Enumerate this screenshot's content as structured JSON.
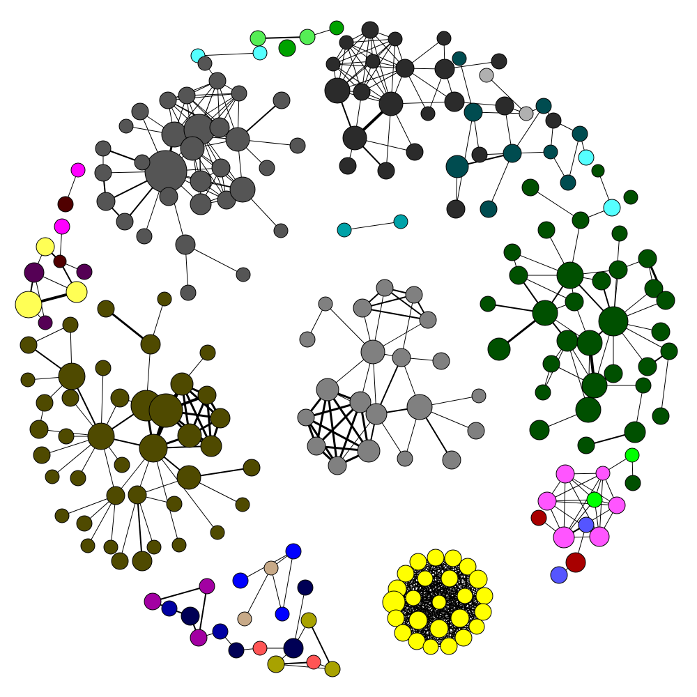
{
  "graph": {
    "palette": {
      "darkgray": "#2b2b2b",
      "gray": "#555555",
      "lightgray": "#808080",
      "silver": "#b0b0b0",
      "teal": "#004c50",
      "cyan": "#55ffff",
      "aqua": "#00a2a8",
      "green": "#005000",
      "brightgreen": "#00ff00",
      "lime": "#55ee55",
      "midgreen": "#00a200",
      "olive": "#4f4a00",
      "olivebright": "#a8a200",
      "yellow": "#ffff00",
      "paleyellow": "#ffff55",
      "pink": "#ff55ff",
      "magenta": "#ff00ff",
      "violet": "#a200a2",
      "plum": "#550055",
      "maroon": "#500000",
      "red": "#a80000",
      "salmon": "#ff5555",
      "blue": "#0000ff",
      "periwinkle": "#5555ff",
      "navy": "#000055",
      "darkblue": "#0000a2",
      "tan": "#c8aa88"
    }
  }
}
